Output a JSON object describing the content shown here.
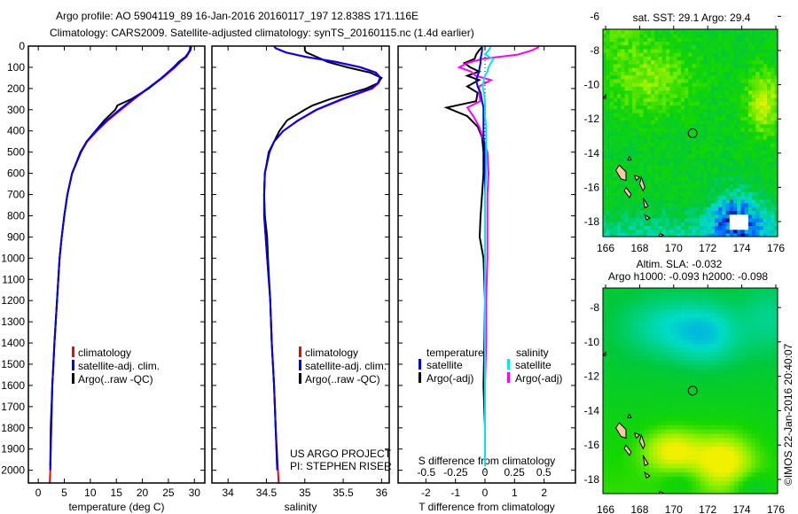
{
  "title": {
    "line1": "Argo profile: AO 5904119_89 16-Jan-2016 20160117_197 12.838S 171.116E",
    "line2": "Climatology: CARS2009. Satellite-adjusted climatology: synTS_20160115.nc (1.4d earlier)"
  },
  "chart_data": [
    {
      "type": "line",
      "id": "temperature",
      "xlabel": "temperature (deg C)",
      "ylabel": "depth",
      "xlim": [
        -1.9,
        32
      ],
      "ylim": [
        2060,
        0
      ],
      "xticks": [
        "0",
        "5",
        "10",
        "15",
        "20",
        "25",
        "30"
      ],
      "yticks": [
        "0",
        "100",
        "200",
        "300",
        "400",
        "500",
        "600",
        "700",
        "800",
        "900",
        "1000",
        "1100",
        "1200",
        "1300",
        "1400",
        "1500",
        "1600",
        "1700",
        "1800",
        "1900",
        "2000"
      ],
      "legend": [
        {
          "label": "climatology",
          "color": "#ff0000"
        },
        {
          "label": "satellite-adj. clim.",
          "color": "#0000ff"
        },
        {
          "label": "Argo(..raw -QC)",
          "color": "#000000"
        }
      ],
      "series": [
        {
          "name": "climatology",
          "color": "#ff0000",
          "depth": [
            0,
            20,
            50,
            75,
            100,
            150,
            200,
            250,
            300,
            350,
            400,
            450,
            500,
            600,
            700,
            800,
            900,
            1000,
            1200,
            1400,
            1600,
            1800,
            2000,
            2060
          ],
          "values": [
            29.3,
            29.2,
            28.5,
            27.3,
            26.3,
            23.9,
            21.1,
            18.4,
            15.9,
            13.4,
            11.3,
            9.4,
            8.2,
            6.5,
            5.6,
            5.0,
            4.5,
            4.1,
            3.6,
            3.1,
            2.7,
            2.5,
            2.3,
            2.2
          ]
        },
        {
          "name": "Argo(..raw -QC)",
          "color": "#000000",
          "depth": [
            4,
            20,
            50,
            75,
            100,
            150,
            200,
            250,
            280,
            300,
            350,
            400,
            450,
            500,
            600,
            700,
            800,
            900,
            1000,
            1200,
            1400,
            1600,
            1800,
            1980
          ],
          "values": [
            29.4,
            29.2,
            28.3,
            27.0,
            26.0,
            23.7,
            21.2,
            17.9,
            15.2,
            14.8,
            12.7,
            11.0,
            9.3,
            8.1,
            6.5,
            5.6,
            5.0,
            4.5,
            4.1,
            3.6,
            3.1,
            2.7,
            2.4,
            2.3
          ]
        },
        {
          "name": "satellite-adj. clim.",
          "color": "#0000ff",
          "depth": [
            0,
            20,
            50,
            75,
            100,
            150,
            200,
            250,
            300,
            350,
            400,
            450,
            500,
            600,
            700,
            800,
            900,
            1000,
            1200,
            1400,
            1600,
            1800,
            2000
          ],
          "values": [
            29.2,
            29.1,
            28.4,
            27.2,
            26.1,
            23.7,
            21.0,
            18.2,
            15.6,
            13.2,
            11.1,
            9.3,
            8.2,
            6.5,
            5.6,
            5.0,
            4.5,
            4.1,
            3.6,
            3.1,
            2.7,
            2.5,
            2.3
          ]
        }
      ]
    },
    {
      "type": "line",
      "id": "salinity",
      "xlabel": "salinity",
      "ylabel": "depth",
      "xlim": [
        33.79,
        36.1
      ],
      "ylim": [
        2060,
        0
      ],
      "xticks": [
        "34",
        "34.5",
        "35",
        "35.5",
        "36"
      ],
      "legend": [
        {
          "label": "climatology",
          "color": "#ff0000"
        },
        {
          "label": "satellite-adj. clim.",
          "color": "#0000ff"
        },
        {
          "label": "Argo(..raw -QC)",
          "color": "#000000"
        }
      ],
      "annotation": [
        "US ARGO PROJECT",
        "PI: STEPHEN RISER"
      ],
      "series": [
        {
          "name": "climatology",
          "color": "#ff0000",
          "depth": [
            0,
            10,
            30,
            50,
            75,
            100,
            125,
            150,
            175,
            200,
            250,
            300,
            350,
            400,
            450,
            500,
            600,
            700,
            800,
            900,
            1000,
            1200,
            1400,
            1600,
            1800,
            2000,
            2060
          ],
          "values": [
            34.6,
            34.62,
            34.76,
            35.0,
            35.42,
            35.73,
            35.93,
            35.99,
            35.96,
            35.88,
            35.5,
            35.16,
            34.92,
            34.72,
            34.6,
            34.54,
            34.48,
            34.47,
            34.47,
            34.49,
            34.51,
            34.55,
            34.57,
            34.6,
            34.62,
            34.65,
            34.66
          ]
        },
        {
          "name": "Argo(..raw -QC)",
          "color": "#000000",
          "depth": [
            4,
            20,
            30,
            50,
            75,
            100,
            125,
            150,
            175,
            200,
            250,
            280,
            300,
            350,
            400,
            500,
            600,
            700,
            800,
            900,
            1000,
            1200,
            1400,
            1600,
            1800,
            1980
          ],
          "values": [
            35.0,
            35.0,
            35.02,
            35.15,
            35.3,
            35.55,
            35.85,
            36.0,
            35.95,
            35.8,
            35.33,
            35.1,
            35.0,
            34.77,
            34.67,
            34.53,
            34.48,
            34.47,
            34.48,
            34.51,
            34.52,
            34.55,
            34.57,
            34.6,
            34.62,
            34.64
          ]
        },
        {
          "name": "satellite-adj. clim.",
          "color": "#0000ff",
          "depth": [
            0,
            10,
            30,
            50,
            75,
            100,
            125,
            150,
            175,
            200,
            250,
            300,
            350,
            400,
            450,
            500,
            600,
            700,
            800,
            900,
            1000,
            1200,
            1400,
            1600,
            1800,
            2000
          ],
          "values": [
            34.6,
            34.62,
            34.75,
            35.0,
            35.4,
            35.72,
            35.92,
            35.98,
            35.95,
            35.86,
            35.48,
            35.15,
            34.91,
            34.72,
            34.6,
            34.54,
            34.48,
            34.47,
            34.47,
            34.49,
            34.51,
            34.55,
            34.57,
            34.6,
            34.62,
            34.64
          ]
        }
      ]
    },
    {
      "type": "line",
      "id": "difference",
      "xlabel": "T difference from climatology",
      "x2label": "S difference from climatology",
      "ylabel": "depth",
      "xlim": [
        -2.94,
        3.06
      ],
      "x2lim": [
        -0.74,
        0.77
      ],
      "ylim": [
        2060,
        0
      ],
      "xticks": [
        "-2",
        "-1",
        "0",
        "1",
        "2"
      ],
      "x2ticks": [
        "-0.5",
        "-0.25",
        "0",
        "0.25",
        "0.5"
      ],
      "legend_headers": [
        "temperature",
        "salinity"
      ],
      "legend": [
        {
          "label": "satellite",
          "color": "#0000ff",
          "group": "temperature"
        },
        {
          "label": "Argo(-adj)",
          "color": "#000000",
          "group": "temperature"
        },
        {
          "label": "satellite",
          "color": "#00e5ee",
          "group": "salinity"
        },
        {
          "label": "Argo(-adj)",
          "color": "#ff00ff",
          "group": "salinity"
        }
      ],
      "depth": [
        4,
        20,
        40,
        60,
        80,
        100,
        120,
        140,
        160,
        190,
        220,
        260,
        290,
        330,
        380,
        430,
        500,
        600,
        700,
        800,
        900,
        1000,
        1200,
        1400,
        1600,
        1800,
        1980
      ],
      "series": [
        {
          "name": "temperature Argo(-adj)",
          "axis": "T",
          "color": "#000000",
          "values": [
            -0.1,
            -0.2,
            -0.3,
            -0.35,
            -0.7,
            -0.5,
            -0.2,
            -0.6,
            -0.2,
            -0.6,
            -0.25,
            -0.3,
            -1.3,
            -0.6,
            -0.25,
            -0.1,
            -0.05,
            -0.05,
            -0.1,
            -0.15,
            -0.18,
            -0.05,
            0,
            -0.02,
            -0.05,
            0,
            0
          ]
        },
        {
          "name": "salinity Argo(-adj)",
          "axis": "S",
          "color": "#ff00ff",
          "values": [
            0.46,
            0.4,
            0.28,
            -0.02,
            -0.15,
            -0.22,
            -0.12,
            -0.08,
            0.05,
            -0.05,
            -0.05,
            -0.04,
            -0.15,
            -0.1,
            -0.05,
            -0.02,
            0.02,
            0.03,
            0.02,
            0.02,
            0.02,
            0.02,
            0.01,
            0.01,
            0,
            0,
            0
          ]
        },
        {
          "name": "temperature satellite",
          "axis": "T",
          "color": "#0000ff",
          "values": [
            -0.1,
            -0.1,
            -0.12,
            -0.15,
            -0.15,
            -0.18,
            -0.2,
            -0.25,
            -0.3,
            -0.25,
            -0.15,
            -0.1,
            -0.05,
            -0.05,
            -0.05,
            -0.05,
            0,
            0,
            0,
            0,
            0,
            0,
            0,
            0,
            0,
            0,
            0
          ]
        },
        {
          "name": "salinity satellite",
          "axis": "S",
          "color": "#00e5ee",
          "values": [
            0.05,
            0.03,
            0,
            0.07,
            0.05,
            0.03,
            0.02,
            0,
            -0.01,
            -0.02,
            -0.01,
            0,
            0,
            0,
            0.01,
            0.01,
            0.01,
            0.01,
            0,
            0,
            0,
            0,
            0,
            0,
            0,
            0,
            0
          ]
        }
      ]
    }
  ],
  "maps": [
    {
      "id": "sst",
      "title": "sat. SST: 29.1  Argo: 29.4",
      "xticks": [
        "166",
        "168",
        "170",
        "172",
        "174",
        "176"
      ],
      "yticks": [
        "-6",
        "-8",
        "-10",
        "-12",
        "-14",
        "-16",
        "-18"
      ],
      "float_position": {
        "lon": 171.116,
        "lat": -12.838
      }
    },
    {
      "id": "sla",
      "title": "Altim. SLA: -0.032",
      "subtitle": "Argo h1000: -0.093 h2000: -0.098",
      "xticks": [
        "166",
        "168",
        "170",
        "172",
        "174",
        "176"
      ],
      "yticks": [
        "-8",
        "-10",
        "-12",
        "-14",
        "-16",
        "-18"
      ],
      "float_position": {
        "lon": 171.116,
        "lat": -12.838
      }
    }
  ],
  "copyright": "©IMOS 22-Jan-2016 20:40:07"
}
